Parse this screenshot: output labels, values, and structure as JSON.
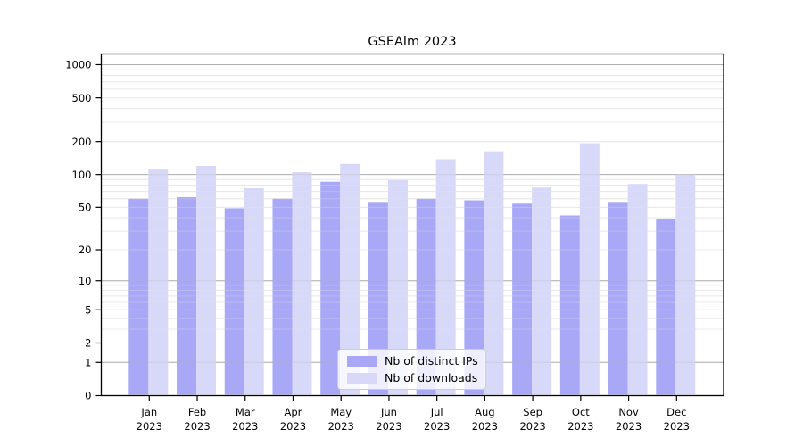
{
  "chart_data": {
    "type": "bar",
    "title": "GSEAlm 2023",
    "categories": [
      "Jan",
      "Feb",
      "Mar",
      "Apr",
      "May",
      "Jun",
      "Jul",
      "Aug",
      "Sep",
      "Oct",
      "Nov",
      "Dec"
    ],
    "x_year_label": "2023",
    "series": [
      {
        "name": "Nb of distinct IPs",
        "color": "#a8a8f6",
        "values": [
          60,
          62,
          49,
          60,
          86,
          55,
          60,
          58,
          54,
          42,
          55,
          39
        ]
      },
      {
        "name": "Nb of downloads",
        "color": "#d8d8f8",
        "values": [
          111,
          120,
          75,
          105,
          125,
          89,
          138,
          163,
          76,
          193,
          82,
          100
        ]
      }
    ],
    "xlabel": "",
    "ylabel": "",
    "yscale": "log1p",
    "ylim": [
      0,
      1250
    ],
    "ytick_labels": [
      "0",
      "1",
      "2",
      "5",
      "10",
      "20",
      "50",
      "100",
      "200",
      "500",
      "1000"
    ],
    "ytick_values": [
      0,
      1,
      2,
      5,
      10,
      20,
      50,
      100,
      200,
      500,
      1000
    ],
    "grid_major_values": [
      1,
      10,
      100,
      1000
    ],
    "grid_minor_values": [
      2,
      3,
      4,
      5,
      6,
      7,
      8,
      9,
      20,
      30,
      40,
      50,
      60,
      70,
      80,
      90,
      200,
      300,
      400,
      500,
      600,
      700,
      800,
      900
    ],
    "legend_position": "lower center",
    "colors": {
      "grid_minor": "#e8e8e8",
      "grid_major": "#b0b0b0",
      "axis": "#000000",
      "text": "#000000",
      "legend_border": "#cccccc"
    }
  }
}
